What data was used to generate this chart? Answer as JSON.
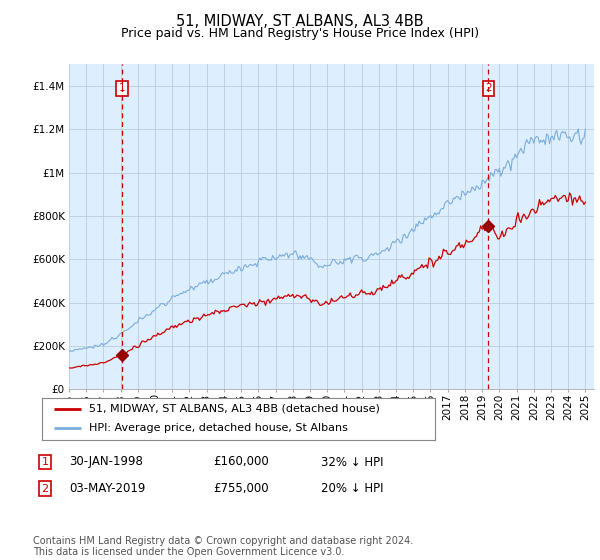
{
  "title": "51, MIDWAY, ST ALBANS, AL3 4BB",
  "subtitle": "Price paid vs. HM Land Registry's House Price Index (HPI)",
  "ylim": [
    0,
    1500000
  ],
  "yticks": [
    0,
    200000,
    400000,
    600000,
    800000,
    1000000,
    1200000,
    1400000
  ],
  "ytick_labels": [
    "£0",
    "£200K",
    "£400K",
    "£600K",
    "£800K",
    "£1M",
    "£1.2M",
    "£1.4M"
  ],
  "sale1_date": 1998.08,
  "sale1_price": 160000,
  "sale1_label": "1",
  "sale2_date": 2019.37,
  "sale2_price": 755000,
  "sale2_label": "2",
  "red_line_color": "#cc0000",
  "blue_line_color": "#7aadda",
  "chart_bg_color": "#ddeeff",
  "marker_color": "#990000",
  "vline_color": "#cc0000",
  "grid_color": "#bbccdd",
  "background_color": "#ffffff",
  "legend1_text": "51, MIDWAY, ST ALBANS, AL3 4BB (detached house)",
  "legend2_text": "HPI: Average price, detached house, St Albans",
  "annotation1_date": "30-JAN-1998",
  "annotation1_price": "£160,000",
  "annotation1_hpi": "32% ↓ HPI",
  "annotation2_date": "03-MAY-2019",
  "annotation2_price": "£755,000",
  "annotation2_hpi": "20% ↓ HPI",
  "footer": "Contains HM Land Registry data © Crown copyright and database right 2024.\nThis data is licensed under the Open Government Licence v3.0.",
  "title_fontsize": 10.5,
  "subtitle_fontsize": 9,
  "tick_fontsize": 7.5,
  "legend_fontsize": 8,
  "annotation_fontsize": 8.5,
  "footer_fontsize": 7
}
